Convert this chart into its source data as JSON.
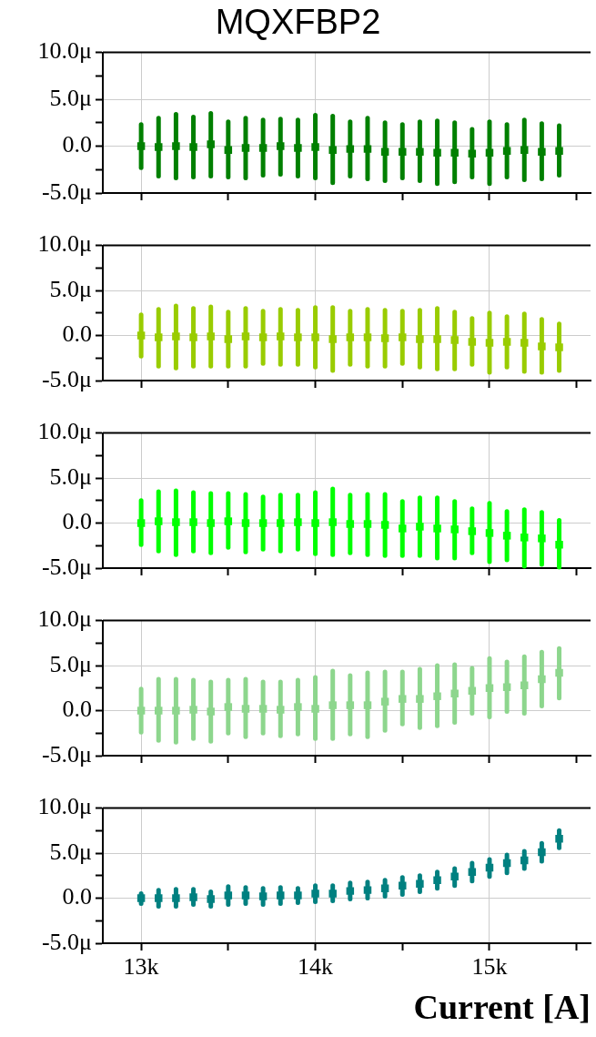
{
  "chart_data": [
    {
      "type": "scatter",
      "title": "MQXFBP2",
      "x": [
        13000,
        13100,
        13200,
        13300,
        13400,
        13500,
        13600,
        13700,
        13800,
        13900,
        14000,
        14100,
        14200,
        14300,
        14400,
        14500,
        14600,
        14700,
        14800,
        14900,
        15000,
        15100,
        15200,
        15300,
        15400
      ],
      "series": [
        {
          "color": "#008000",
          "values": [
            0,
            -0.1,
            0,
            -0.1,
            0.2,
            -0.4,
            -0.2,
            -0.2,
            0,
            -0.2,
            -0.1,
            -0.4,
            -0.3,
            -0.3,
            -0.6,
            -0.6,
            -0.6,
            -0.7,
            -0.7,
            -0.8,
            -0.7,
            -0.5,
            -0.4,
            -0.6,
            -0.5
          ],
          "errors": [
            [
              -2.3,
              2.3
            ],
            [
              -3.2,
              3.0
            ],
            [
              -3.4,
              3.4
            ],
            [
              -3.3,
              3.1
            ],
            [
              -3.2,
              3.5
            ],
            [
              -3.3,
              2.6
            ],
            [
              -3.4,
              3.0
            ],
            [
              -3.1,
              2.8
            ],
            [
              -3.0,
              2.9
            ],
            [
              -3.2,
              2.8
            ],
            [
              -3.4,
              3.3
            ],
            [
              -3.9,
              3.2
            ],
            [
              -3.2,
              2.6
            ],
            [
              -3.5,
              3.0
            ],
            [
              -3.7,
              2.5
            ],
            [
              -3.4,
              2.3
            ],
            [
              -3.7,
              2.6
            ],
            [
              -4.0,
              2.7
            ],
            [
              -3.8,
              2.5
            ],
            [
              -3.3,
              1.8
            ],
            [
              -4.0,
              2.6
            ],
            [
              -3.3,
              2.3
            ],
            [
              -3.6,
              2.8
            ],
            [
              -3.5,
              2.4
            ],
            [
              -3.1,
              2.2
            ]
          ]
        }
      ],
      "xlim": [
        12780,
        15580
      ],
      "xticks": [
        13000,
        {
          "value": 13500,
          "label": null
        },
        14000,
        {
          "value": 14500,
          "label": null
        },
        15000,
        {
          "value": 15500,
          "label": null
        }
      ],
      "ylim": [
        -5,
        10
      ],
      "yticks": [
        {
          "value": -5,
          "label": "-5.0μ"
        },
        {
          "value": -2.5,
          "label": null
        },
        {
          "value": 0,
          "label": "0.0"
        },
        {
          "value": 2.5,
          "label": null
        },
        {
          "value": 5,
          "label": "5.0μ"
        },
        {
          "value": 7.5,
          "label": null
        },
        {
          "value": 10,
          "label": "10.0μ"
        }
      ],
      "grid": true,
      "marker": "square",
      "tick_labels": "y"
    },
    {
      "type": "scatter",
      "x": [
        13000,
        13100,
        13200,
        13300,
        13400,
        13500,
        13600,
        13700,
        13800,
        13900,
        14000,
        14100,
        14200,
        14300,
        14400,
        14500,
        14600,
        14700,
        14800,
        14900,
        15000,
        15100,
        15200,
        15300,
        15400
      ],
      "series": [
        {
          "color": "#99cc00",
          "values": [
            0,
            -0.2,
            -0.1,
            -0.2,
            -0.1,
            -0.4,
            -0.1,
            -0.2,
            -0.1,
            -0.2,
            -0.2,
            -0.4,
            -0.2,
            -0.2,
            -0.3,
            -0.2,
            -0.4,
            -0.4,
            -0.5,
            -0.7,
            -0.8,
            -0.7,
            -0.8,
            -1.2,
            -1.3
          ],
          "errors": [
            [
              -2.3,
              2.3
            ],
            [
              -3.4,
              2.9
            ],
            [
              -3.6,
              3.3
            ],
            [
              -3.4,
              3.0
            ],
            [
              -3.4,
              3.2
            ],
            [
              -3.4,
              2.6
            ],
            [
              -3.4,
              3.0
            ],
            [
              -3.1,
              2.7
            ],
            [
              -3.2,
              2.9
            ],
            [
              -3.2,
              2.8
            ],
            [
              -3.5,
              3.1
            ],
            [
              -3.9,
              3.1
            ],
            [
              -3.2,
              2.7
            ],
            [
              -3.4,
              2.9
            ],
            [
              -3.4,
              2.8
            ],
            [
              -3.1,
              2.7
            ],
            [
              -3.5,
              2.8
            ],
            [
              -3.7,
              3.0
            ],
            [
              -3.7,
              2.6
            ],
            [
              -3.2,
              1.9
            ],
            [
              -4.1,
              2.5
            ],
            [
              -3.5,
              2.1
            ],
            [
              -4.0,
              2.4
            ],
            [
              -4.1,
              1.8
            ],
            [
              -3.9,
              1.3
            ]
          ]
        }
      ],
      "xlim": [
        12780,
        15580
      ],
      "xticks": [
        13000,
        {
          "value": 13500,
          "label": null
        },
        14000,
        {
          "value": 14500,
          "label": null
        },
        15000,
        {
          "value": 15500,
          "label": null
        }
      ],
      "ylim": [
        -5,
        10
      ],
      "yticks": [
        {
          "value": -5,
          "label": "-5.0μ"
        },
        {
          "value": -2.5,
          "label": null
        },
        {
          "value": 0,
          "label": "0.0"
        },
        {
          "value": 2.5,
          "label": null
        },
        {
          "value": 5,
          "label": "5.0μ"
        },
        {
          "value": 7.5,
          "label": null
        },
        {
          "value": 10,
          "label": "10.0μ"
        }
      ],
      "grid": true,
      "marker": "square",
      "tick_labels": "y"
    },
    {
      "type": "scatter",
      "x": [
        13000,
        13100,
        13200,
        13300,
        13400,
        13500,
        13600,
        13700,
        13800,
        13900,
        14000,
        14100,
        14200,
        14300,
        14400,
        14500,
        14600,
        14700,
        14800,
        14900,
        15000,
        15100,
        15200,
        15300,
        15400
      ],
      "series": [
        {
          "color": "#00ff00",
          "values": [
            0,
            0.2,
            0.1,
            0.1,
            0,
            0.2,
            0,
            0,
            0,
            0.1,
            0,
            0.1,
            -0.1,
            -0.1,
            -0.2,
            -0.6,
            -0.4,
            -0.6,
            -0.7,
            -0.9,
            -1.1,
            -1.4,
            -1.6,
            -1.7,
            -2.4
          ],
          "errors": [
            [
              -2.4,
              2.5
            ],
            [
              -3.1,
              3.5
            ],
            [
              -3.5,
              3.6
            ],
            [
              -3.1,
              3.4
            ],
            [
              -3.3,
              3.3
            ],
            [
              -2.7,
              3.3
            ],
            [
              -3.2,
              3.2
            ],
            [
              -2.9,
              2.9
            ],
            [
              -3.1,
              3.1
            ],
            [
              -2.9,
              3.1
            ],
            [
              -3.4,
              3.4
            ],
            [
              -3.5,
              3.8
            ],
            [
              -3.3,
              3.1
            ],
            [
              -3.5,
              3.2
            ],
            [
              -3.6,
              3.2
            ],
            [
              -3.6,
              2.4
            ],
            [
              -3.6,
              2.8
            ],
            [
              -3.9,
              2.8
            ],
            [
              -3.9,
              2.4
            ],
            [
              -3.3,
              1.6
            ],
            [
              -4.3,
              2.2
            ],
            [
              -4.1,
              1.3
            ],
            [
              -4.8,
              1.5
            ],
            [
              -4.6,
              1.2
            ],
            [
              -4.9,
              0.3
            ]
          ]
        }
      ],
      "xlim": [
        12780,
        15580
      ],
      "xticks": [
        13000,
        {
          "value": 13500,
          "label": null
        },
        14000,
        {
          "value": 14500,
          "label": null
        },
        15000,
        {
          "value": 15500,
          "label": null
        }
      ],
      "ylim": [
        -5,
        10
      ],
      "yticks": [
        {
          "value": -5,
          "label": "-5.0μ"
        },
        {
          "value": -2.5,
          "label": null
        },
        {
          "value": 0,
          "label": "0.0"
        },
        {
          "value": 2.5,
          "label": null
        },
        {
          "value": 5,
          "label": "5.0μ"
        },
        {
          "value": 7.5,
          "label": null
        },
        {
          "value": 10,
          "label": "10.0μ"
        }
      ],
      "grid": true,
      "marker": "square",
      "tick_labels": "y"
    },
    {
      "type": "scatter",
      "x": [
        13000,
        13100,
        13200,
        13300,
        13400,
        13500,
        13600,
        13700,
        13800,
        13900,
        14000,
        14100,
        14200,
        14300,
        14400,
        14500,
        14600,
        14700,
        14800,
        14900,
        15000,
        15100,
        15200,
        15300,
        15400
      ],
      "series": [
        {
          "color": "#8dd68d",
          "values": [
            0,
            0,
            0,
            0.1,
            -0.1,
            0.4,
            0.2,
            0.2,
            0.1,
            0.4,
            0.2,
            0.6,
            0.6,
            0.6,
            1.0,
            1.3,
            1.3,
            1.6,
            1.9,
            2.2,
            2.5,
            2.6,
            2.8,
            3.5,
            4.2
          ],
          "errors": [
            [
              -2.4,
              2.4
            ],
            [
              -3.3,
              3.5
            ],
            [
              -3.5,
              3.5
            ],
            [
              -3.1,
              3.4
            ],
            [
              -3.4,
              3.2
            ],
            [
              -2.5,
              3.4
            ],
            [
              -2.9,
              3.5
            ],
            [
              -2.5,
              3.2
            ],
            [
              -2.8,
              3.2
            ],
            [
              -2.6,
              3.4
            ],
            [
              -3.1,
              3.7
            ],
            [
              -3.1,
              4.4
            ],
            [
              -2.6,
              3.9
            ],
            [
              -2.9,
              4.2
            ],
            [
              -2.2,
              4.3
            ],
            [
              -1.5,
              4.3
            ],
            [
              -1.9,
              4.6
            ],
            [
              -1.7,
              5.0
            ],
            [
              -1.3,
              5.1
            ],
            [
              -0.3,
              4.7
            ],
            [
              -0.7,
              5.8
            ],
            [
              -0.1,
              5.4
            ],
            [
              -0.3,
              6.0
            ],
            [
              0.5,
              6.5
            ],
            [
              1.4,
              6.9
            ]
          ]
        }
      ],
      "xlim": [
        12780,
        15580
      ],
      "xticks": [
        13000,
        {
          "value": 13500,
          "label": null
        },
        14000,
        {
          "value": 14500,
          "label": null
        },
        15000,
        {
          "value": 15500,
          "label": null
        }
      ],
      "ylim": [
        -5,
        10
      ],
      "yticks": [
        {
          "value": -5,
          "label": "-5.0μ"
        },
        {
          "value": -2.5,
          "label": null
        },
        {
          "value": 0,
          "label": "0.0"
        },
        {
          "value": 2.5,
          "label": null
        },
        {
          "value": 5,
          "label": "5.0μ"
        },
        {
          "value": 7.5,
          "label": null
        },
        {
          "value": 10,
          "label": "10.0μ"
        }
      ],
      "grid": true,
      "marker": "square",
      "tick_labels": "y"
    },
    {
      "type": "scatter",
      "xlabel": "Current [A]",
      "x": [
        13000,
        13100,
        13200,
        13300,
        13400,
        13500,
        13600,
        13700,
        13800,
        13900,
        14000,
        14100,
        14200,
        14300,
        14400,
        14500,
        14600,
        14700,
        14800,
        14900,
        15000,
        15100,
        15200,
        15300,
        15400
      ],
      "series": [
        {
          "color": "#008080",
          "values": [
            0,
            0,
            0,
            0.1,
            -0.1,
            0.3,
            0.3,
            0.2,
            0.3,
            0.3,
            0.5,
            0.5,
            0.8,
            0.9,
            1.1,
            1.4,
            1.6,
            2.0,
            2.4,
            2.9,
            3.4,
            3.9,
            4.2,
            5.1,
            6.6
          ],
          "errors": [
            [
              -0.6,
              0.5
            ],
            [
              -0.9,
              0.9
            ],
            [
              -0.9,
              1.0
            ],
            [
              -0.7,
              1.0
            ],
            [
              -0.9,
              0.7
            ],
            [
              -0.7,
              1.3
            ],
            [
              -0.6,
              1.2
            ],
            [
              -0.7,
              1.1
            ],
            [
              -0.6,
              1.2
            ],
            [
              -0.5,
              1.1
            ],
            [
              -0.4,
              1.4
            ],
            [
              -0.3,
              1.4
            ],
            [
              -0.1,
              1.7
            ],
            [
              0,
              1.8
            ],
            [
              0.2,
              2.0
            ],
            [
              0.4,
              2.3
            ],
            [
              0.7,
              2.5
            ],
            [
              1.1,
              2.9
            ],
            [
              1.4,
              3.3
            ],
            [
              1.9,
              3.9
            ],
            [
              2.4,
              4.3
            ],
            [
              2.8,
              4.8
            ],
            [
              3.3,
              5.2
            ],
            [
              4.1,
              6.1
            ],
            [
              5.6,
              7.5
            ]
          ]
        }
      ],
      "xlim": [
        12780,
        15580
      ],
      "xticks": [
        {
          "value": 13000,
          "label": "13k"
        },
        {
          "value": 13500,
          "label": null
        },
        {
          "value": 14000,
          "label": "14k"
        },
        {
          "value": 14500,
          "label": null
        },
        {
          "value": 15000,
          "label": "15k"
        },
        {
          "value": 15500,
          "label": null
        }
      ],
      "ylim": [
        -5,
        10
      ],
      "yticks": [
        {
          "value": -5,
          "label": "-5.0μ"
        },
        {
          "value": -2.5,
          "label": null
        },
        {
          "value": 0,
          "label": "0.0"
        },
        {
          "value": 2.5,
          "label": null
        },
        {
          "value": 5,
          "label": "5.0μ"
        },
        {
          "value": 7.5,
          "label": null
        },
        {
          "value": 10,
          "label": "10.0μ"
        }
      ],
      "grid": true,
      "marker": "square"
    }
  ]
}
